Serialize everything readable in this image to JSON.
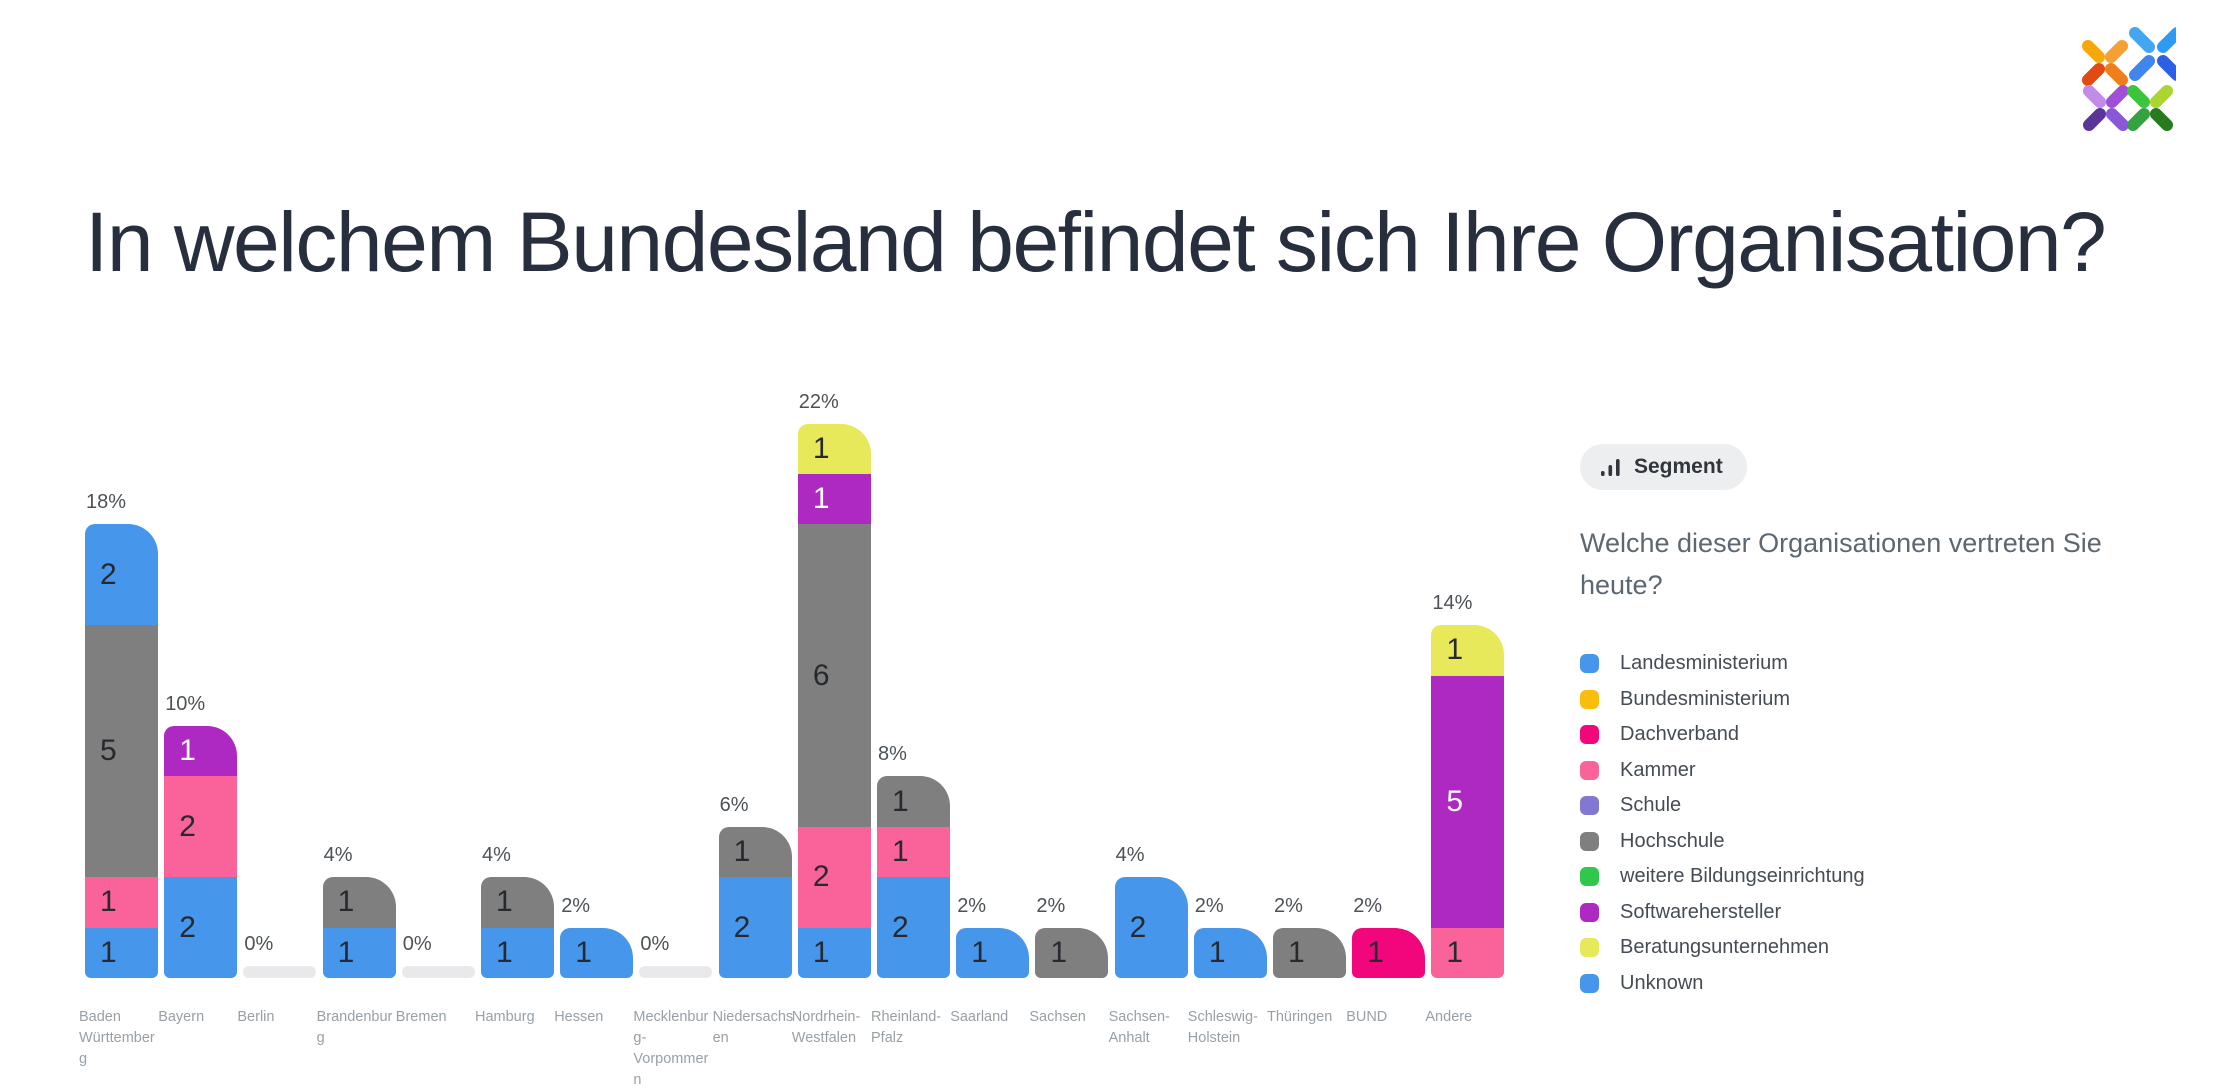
{
  "page": {
    "title": "In welchem Bundesland befindet sich Ihre Organisation?"
  },
  "segment_panel": {
    "button_label": "Segment",
    "question": "Welche dieser Organisationen vertreten Sie heute?"
  },
  "legend": {
    "position": "right",
    "items": [
      {
        "label": "Landesministerium",
        "color": "#4697ec"
      },
      {
        "label": "Bundesministerium",
        "color": "#fbbd0c"
      },
      {
        "label": "Dachverband",
        "color": "#f2067b"
      },
      {
        "label": "Kammer",
        "color": "#f9639a"
      },
      {
        "label": "Schule",
        "color": "#8278d2"
      },
      {
        "label": "Hochschule",
        "color": "#7f7f7f"
      },
      {
        "label": "weitere Bildungseinrichtung",
        "color": "#2fc84d"
      },
      {
        "label": "Softwarehersteller",
        "color": "#ae28c2"
      },
      {
        "label": "Beratungsunternehmen",
        "color": "#e7e95b"
      },
      {
        "label": "Unknown",
        "color": "#4697ec"
      }
    ],
    "white_text_groups": [
      "Softwarehersteller"
    ]
  },
  "chart_data": {
    "type": "bar",
    "stacked": true,
    "title": "In welchem Bundesland befindet sich Ihre Organisation?",
    "grid": false,
    "axes_visible": false,
    "percent_per_count": 2,
    "categories": [
      "Baden Württemberg",
      "Bayern",
      "Berlin",
      "Brandenburg",
      "Bremen",
      "Hamburg",
      "Hessen",
      "Mecklenburg-Vorpommern",
      "Niedersachsen",
      "Nordrhein-Westfalen",
      "Rheinland-Pfalz",
      "Saarland",
      "Sachsen",
      "Sachsen-Anhalt",
      "Schleswig-Holstein",
      "Thüringen",
      "BUND",
      "Andere"
    ],
    "percent_labels": [
      "18%",
      "10%",
      "0%",
      "4%",
      "0%",
      "4%",
      "2%",
      "0%",
      "6%",
      "22%",
      "8%",
      "2%",
      "2%",
      "4%",
      "2%",
      "2%",
      "2%",
      "14%"
    ],
    "bars": [
      {
        "category": "Baden Württemberg",
        "percent": "18%",
        "total": 9,
        "segments": [
          {
            "group": "Landesministerium",
            "value": 1
          },
          {
            "group": "Kammer",
            "value": 1
          },
          {
            "group": "Hochschule",
            "value": 5
          },
          {
            "group": "Unknown",
            "value": 2
          }
        ]
      },
      {
        "category": "Bayern",
        "percent": "10%",
        "total": 5,
        "segments": [
          {
            "group": "Landesministerium",
            "value": 2
          },
          {
            "group": "Kammer",
            "value": 2
          },
          {
            "group": "Softwarehersteller",
            "value": 1
          }
        ]
      },
      {
        "category": "Berlin",
        "percent": "0%",
        "total": 0,
        "segments": []
      },
      {
        "category": "Brandenburg",
        "percent": "4%",
        "total": 2,
        "segments": [
          {
            "group": "Landesministerium",
            "value": 1
          },
          {
            "group": "Hochschule",
            "value": 1
          }
        ]
      },
      {
        "category": "Bremen",
        "percent": "0%",
        "total": 0,
        "segments": []
      },
      {
        "category": "Hamburg",
        "percent": "4%",
        "total": 2,
        "segments": [
          {
            "group": "Landesministerium",
            "value": 1
          },
          {
            "group": "Hochschule",
            "value": 1
          }
        ]
      },
      {
        "category": "Hessen",
        "percent": "2%",
        "total": 1,
        "segments": [
          {
            "group": "Landesministerium",
            "value": 1
          }
        ]
      },
      {
        "category": "Mecklenburg-Vorpommern",
        "percent": "0%",
        "total": 0,
        "segments": []
      },
      {
        "category": "Niedersachsen",
        "percent": "6%",
        "total": 3,
        "segments": [
          {
            "group": "Landesministerium",
            "value": 2
          },
          {
            "group": "Hochschule",
            "value": 1
          }
        ]
      },
      {
        "category": "Nordrhein-Westfalen",
        "percent": "22%",
        "total": 11,
        "segments": [
          {
            "group": "Landesministerium",
            "value": 1
          },
          {
            "group": "Kammer",
            "value": 2
          },
          {
            "group": "Hochschule",
            "value": 6
          },
          {
            "group": "Softwarehersteller",
            "value": 1
          },
          {
            "group": "Beratungsunternehmen",
            "value": 1
          }
        ]
      },
      {
        "category": "Rheinland-Pfalz",
        "percent": "8%",
        "total": 4,
        "segments": [
          {
            "group": "Landesministerium",
            "value": 2
          },
          {
            "group": "Kammer",
            "value": 1
          },
          {
            "group": "Hochschule",
            "value": 1
          }
        ]
      },
      {
        "category": "Saarland",
        "percent": "2%",
        "total": 1,
        "segments": [
          {
            "group": "Landesministerium",
            "value": 1
          }
        ]
      },
      {
        "category": "Sachsen",
        "percent": "2%",
        "total": 1,
        "segments": [
          {
            "group": "Hochschule",
            "value": 1
          }
        ]
      },
      {
        "category": "Sachsen-Anhalt",
        "percent": "4%",
        "total": 2,
        "segments": [
          {
            "group": "Landesministerium",
            "value": 2
          }
        ]
      },
      {
        "category": "Schleswig-Holstein",
        "percent": "2%",
        "total": 1,
        "segments": [
          {
            "group": "Landesministerium",
            "value": 1
          }
        ]
      },
      {
        "category": "Thüringen",
        "percent": "2%",
        "total": 1,
        "segments": [
          {
            "group": "Hochschule",
            "value": 1
          }
        ]
      },
      {
        "category": "BUND",
        "percent": "2%",
        "total": 1,
        "segments": [
          {
            "group": "Dachverband",
            "value": 1
          }
        ]
      },
      {
        "category": "Andere",
        "percent": "14%",
        "total": 7,
        "segments": [
          {
            "group": "Kammer",
            "value": 1
          },
          {
            "group": "Softwarehersteller",
            "value": 5
          },
          {
            "group": "Beratungsunternehmen",
            "value": 1
          }
        ]
      }
    ]
  },
  "colors": {
    "title_text": "#272e3e",
    "percent_label": "#4c5257",
    "value_label_dark": "#26292e",
    "value_label_light": "#ffffff",
    "axis_label": "#98a0a7",
    "empty_bar_placeholder": "#e9e9eb",
    "pill_background": "#edeef0",
    "pill_text": "#30363c",
    "question_text": "#5d6772",
    "legend_text": "#454c54"
  }
}
